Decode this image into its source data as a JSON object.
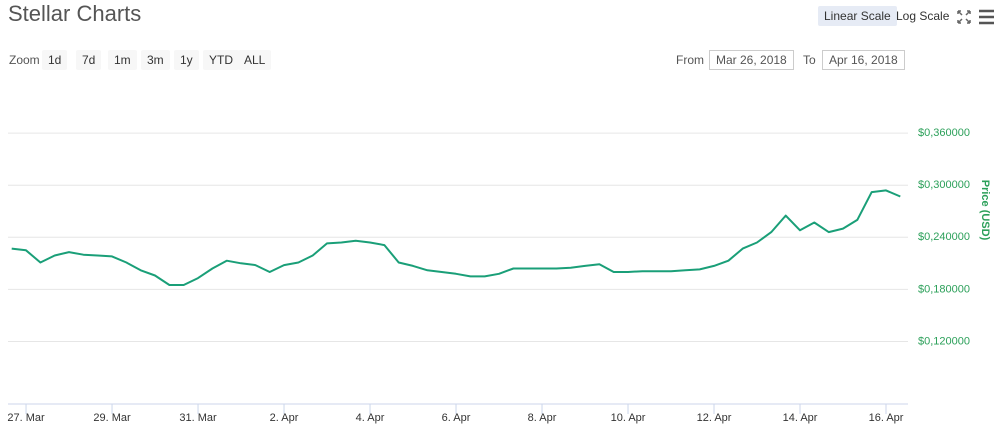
{
  "chart_data": {
    "type": "line",
    "title": "Stellar Charts",
    "y_title": "Price (USD)",
    "categories": [
      null,
      "27. Mar",
      null,
      null,
      null,
      null,
      null,
      "29. Mar",
      null,
      null,
      null,
      null,
      null,
      "31. Mar",
      null,
      null,
      null,
      null,
      null,
      "2. Apr",
      null,
      null,
      null,
      null,
      null,
      "4. Apr",
      null,
      null,
      null,
      null,
      null,
      "6. Apr",
      null,
      null,
      null,
      null,
      null,
      "8. Apr",
      null,
      null,
      null,
      null,
      null,
      "10. Apr",
      null,
      null,
      null,
      null,
      null,
      "12. Apr",
      null,
      null,
      null,
      null,
      null,
      "14. Apr",
      null,
      null,
      null,
      null,
      null,
      "16. Apr",
      null
    ],
    "series": [
      {
        "color": "#1a9f78",
        "values": [
          0.227,
          0.225,
          0.211,
          0.219,
          0.223,
          0.22,
          0.219,
          0.218,
          0.211,
          0.202,
          0.196,
          0.185,
          0.185,
          0.193,
          0.204,
          0.213,
          0.21,
          0.208,
          0.2,
          0.208,
          0.211,
          0.219,
          0.233,
          0.234,
          0.236,
          0.234,
          0.231,
          0.211,
          0.207,
          0.202,
          0.2,
          0.198,
          0.195,
          0.195,
          0.198,
          0.204,
          0.204,
          0.204,
          0.204,
          0.205,
          0.207,
          0.209,
          0.2,
          0.2,
          0.201,
          0.201,
          0.201,
          0.202,
          0.203,
          0.207,
          0.213,
          0.227,
          0.234,
          0.246,
          0.265,
          0.248,
          0.257,
          0.246,
          0.25,
          0.26,
          0.292,
          0.294,
          0.287
        ]
      }
    ],
    "ylim": [
      0.048,
      0.42
    ],
    "yticks": [
      {
        "value": 0.12,
        "label": "$0,120000"
      },
      {
        "value": 0.18,
        "label": "$0,180000"
      },
      {
        "value": 0.24,
        "label": "$0,240000"
      },
      {
        "value": 0.3,
        "label": "$0,300000"
      },
      {
        "value": 0.36,
        "label": "$0,360000"
      }
    ],
    "ytick_color": "#2ca05a",
    "grid": true
  },
  "toolbar": {
    "scale_buttons": [
      "Linear Scale",
      "Log Scale"
    ],
    "zoom_label": "Zoom",
    "ranges": [
      "1d",
      "7d",
      "1m",
      "3m",
      "1y",
      "YTD",
      "ALL"
    ],
    "from_label": "From",
    "from": "Mar 26, 2018",
    "to_label": "To",
    "to": "Apr 16, 2018"
  }
}
